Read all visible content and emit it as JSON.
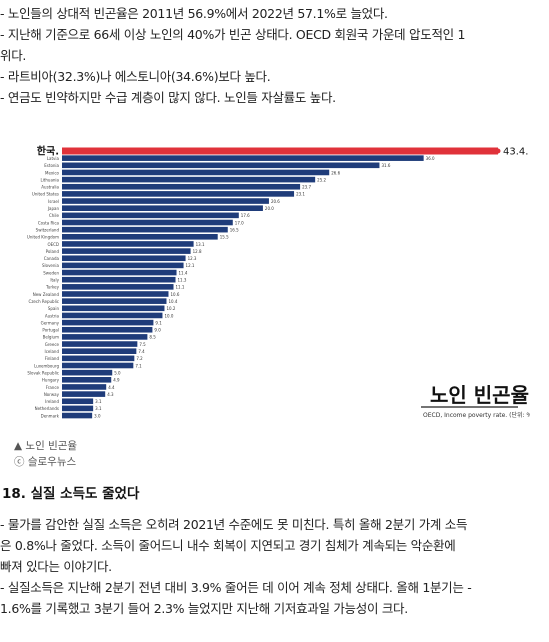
{
  "intro_lines": [
    "- 노인들의 상대적 빈곤율은 2011년 56.9%에서 2022년 57.1%로 늘었다.",
    "- 지난해 기준으로 66세 이상 노인의 40%가 빈곤 상태다. OECD 회원국 가운데 압도적인 1",
    "위다.",
    "- 라트비아(32.3%)나 에스토니아(34.6%)보다 높다.",
    "- 연금도 빈약하지만 수급 계층이 많지 않다. 노인들 자살률도 높다."
  ],
  "chart_data": {
    "type": "bar",
    "orientation": "horizontal",
    "title": "노인 빈곤율.",
    "subtitle": "OECD, Income poverty rate. (단위: %)",
    "highlight_label": "한국.",
    "highlight_value_label": "43.4.",
    "categories": [
      "한국",
      "Latvia",
      "Estonia",
      "Mexico",
      "Lithuania",
      "Australia",
      "United States",
      "Israel",
      "Japan",
      "Chile",
      "Costa Rica",
      "Switzerland",
      "United Kingdom",
      "OECD",
      "Poland",
      "Canada",
      "Slovenia",
      "Sweden",
      "Italy",
      "Turkey",
      "New Zealand",
      "Czech Republic",
      "Spain",
      "Austria",
      "Germany",
      "Portugal",
      "Belgium",
      "Greece",
      "Iceland",
      "Finland",
      "Luxembourg",
      "Slovak Republic",
      "Hungary",
      "France",
      "Norway",
      "Ireland",
      "Netherlands",
      "Denmark"
    ],
    "values": [
      43.4,
      36.0,
      31.6,
      26.6,
      25.2,
      23.7,
      23.1,
      20.6,
      20.0,
      17.6,
      17.0,
      16.5,
      15.5,
      13.1,
      12.8,
      12.3,
      12.1,
      11.4,
      11.3,
      11.1,
      10.6,
      10.4,
      10.2,
      10.0,
      9.1,
      9.0,
      8.5,
      7.5,
      7.4,
      7.2,
      7.1,
      5.0,
      4.9,
      4.4,
      4.3,
      3.1,
      3.1,
      3.0
    ],
    "colors": {
      "highlight": "#e0323a",
      "bar": "#1f3c7a",
      "value_label": "#333333"
    }
  },
  "captions": {
    "source_title": "▲ 노인 빈곤율",
    "credit": "ⓒ 슬로우뉴스"
  },
  "section_heading": "18. 실질 소득도 줄었다",
  "body_lines": [
    "- 물가를 감안한 실질 소득은 오히려 2021년 수준에도 못 미친다. 특히 올해 2분기 가계 소득",
    "은 0.8%나 줄었다. 소득이 줄어드니 내수 회복이 지연되고 경기 침체가 계속되는 악순환에",
    "빠져 있다는 이야기다.",
    "- 실질소득은 지난해 2분기 전년 대비 3.9% 줄어든 데 이어 계속 정체 상태다. 올해 1분기는 -",
    "1.6%를 기록했고 3분기 들어 2.3% 늘었지만 지난해 기저효과일 가능성이 크다."
  ]
}
